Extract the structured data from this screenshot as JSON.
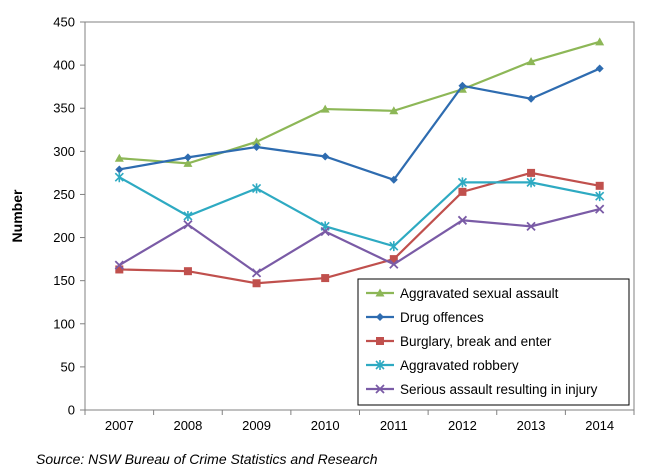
{
  "chart_data": {
    "type": "line",
    "title": "",
    "xlabel": "",
    "ylabel": "Number",
    "ylim": [
      0,
      450
    ],
    "yticks": [
      0,
      50,
      100,
      150,
      200,
      250,
      300,
      350,
      400,
      450
    ],
    "categories": [
      "2007",
      "2008",
      "2009",
      "2010",
      "2011",
      "2012",
      "2013",
      "2014"
    ],
    "grid": false,
    "legend_position": "bottom-right",
    "series": [
      {
        "name": "Aggravated sexual assault",
        "color": "#8DB757",
        "marker": "triangle",
        "values": [
          292,
          286,
          311,
          349,
          347,
          372,
          404,
          427
        ]
      },
      {
        "name": "Drug offences",
        "color": "#2E6CB0",
        "marker": "diamond",
        "values": [
          279,
          293,
          305,
          294,
          267,
          376,
          361,
          396
        ]
      },
      {
        "name": "Burglary, break and enter",
        "color": "#C0504D",
        "marker": "square",
        "values": [
          163,
          161,
          147,
          153,
          175,
          253,
          275,
          260
        ]
      },
      {
        "name": "Aggravated robbery",
        "color": "#2EAAC2",
        "marker": "asterisk",
        "values": [
          270,
          225,
          257,
          213,
          190,
          264,
          264,
          248
        ]
      },
      {
        "name": "Serious assault resulting in injury",
        "color": "#7A5BA6",
        "marker": "x",
        "values": [
          168,
          215,
          159,
          207,
          169,
          220,
          213,
          233
        ]
      }
    ]
  },
  "source": "Source: NSW Bureau of Crime Statistics and Research"
}
